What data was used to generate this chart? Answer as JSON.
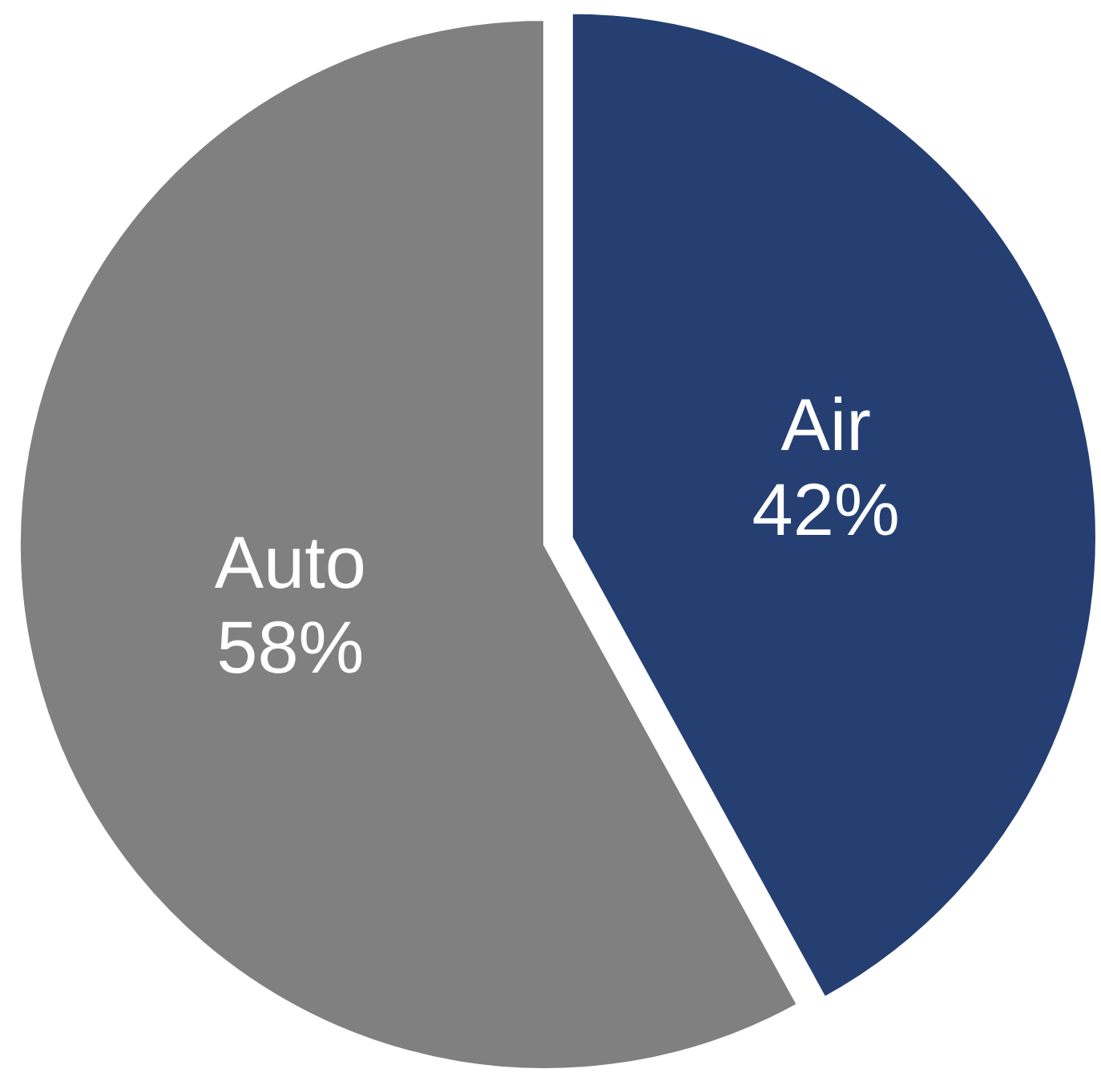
{
  "chart_data": {
    "type": "pie",
    "categories": [
      "Air",
      "Auto"
    ],
    "values": [
      42,
      58
    ],
    "colors": [
      "#253f73",
      "#808080"
    ],
    "value_labels": [
      "42%",
      "58%"
    ]
  }
}
